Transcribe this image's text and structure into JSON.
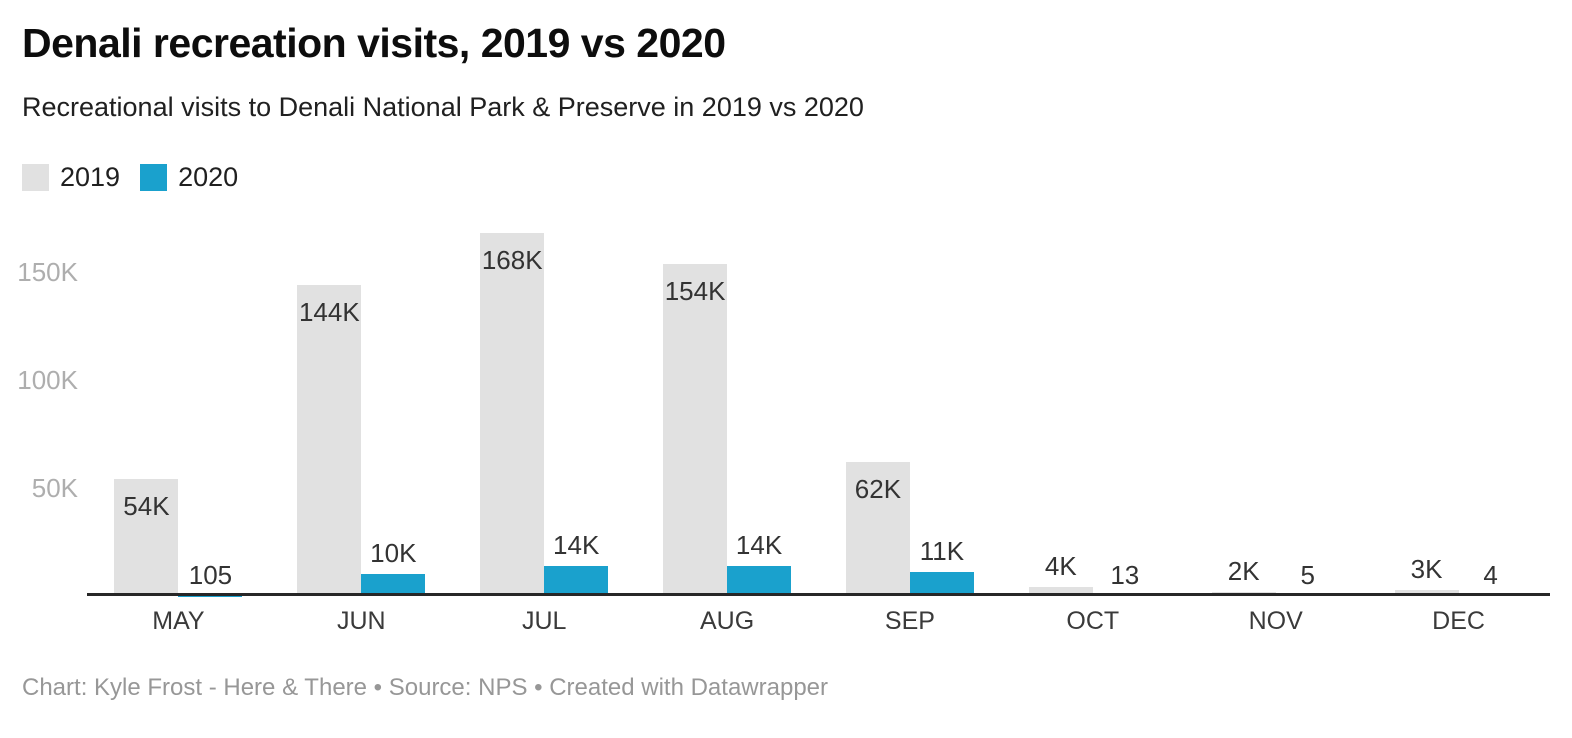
{
  "header": {
    "title": "Denali recreation visits, 2019 vs 2020",
    "subtitle": "Recreational visits to Denali National Park & Preserve in 2019 vs 2020"
  },
  "chart_data": {
    "type": "bar",
    "title": "Denali recreation visits, 2019 vs 2020",
    "subtitle": "Recreational visits to Denali National Park & Preserve in 2019 vs 2020",
    "categories": [
      "MAY",
      "JUN",
      "JUL",
      "AUG",
      "SEP",
      "OCT",
      "NOV",
      "DEC"
    ],
    "series": [
      {
        "name": "2019",
        "color": "#e1e1e1",
        "values": [
          54000,
          144000,
          168000,
          154000,
          62000,
          4000,
          2000,
          3000
        ],
        "labels": [
          "54K",
          "144K",
          "168K",
          "154K",
          "62K",
          "4K",
          "2K",
          "3K"
        ]
      },
      {
        "name": "2020",
        "color": "#1aa1cd",
        "values": [
          105,
          10000,
          14000,
          14000,
          11000,
          13,
          5,
          4
        ],
        "labels": [
          "105",
          "10K",
          "14K",
          "14K",
          "11K",
          "13",
          "5",
          "4"
        ]
      }
    ],
    "y_axis": {
      "ticks": [
        {
          "value": 50000,
          "label": "50K"
        },
        {
          "value": 100000,
          "label": "100K"
        },
        {
          "value": 150000,
          "label": "150K"
        }
      ],
      "ylim": [
        0,
        170000
      ],
      "grid": false
    },
    "legend_position": "top-left"
  },
  "footer": {
    "text": "Chart: Kyle Frost - Here & There • Source: NPS • Created with Datawrapper"
  }
}
